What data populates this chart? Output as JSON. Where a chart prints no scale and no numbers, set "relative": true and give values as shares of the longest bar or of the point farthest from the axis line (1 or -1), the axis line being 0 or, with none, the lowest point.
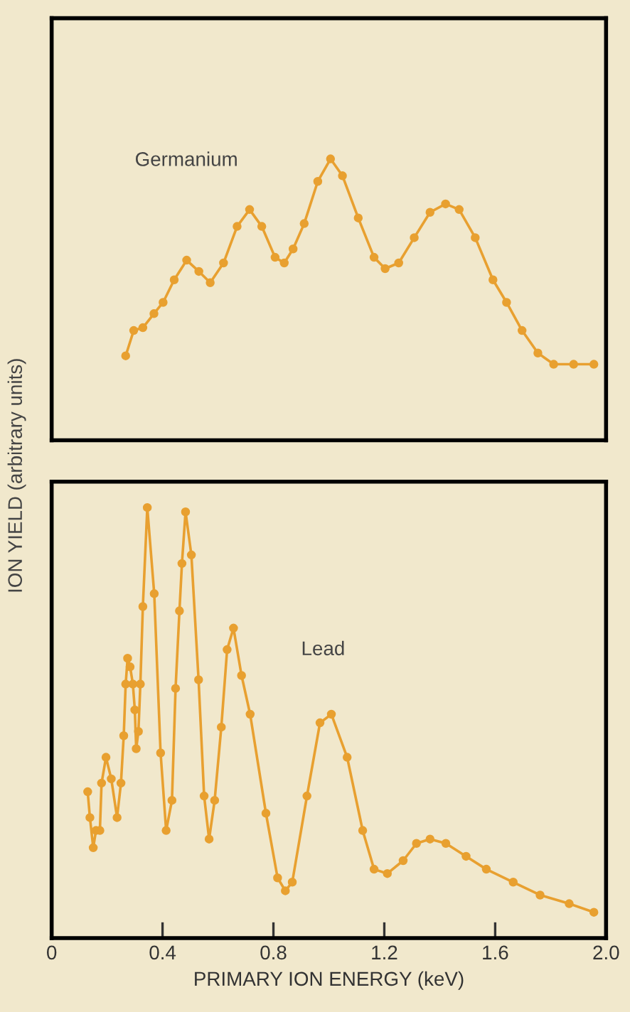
{
  "chart_data": [
    {
      "type": "line",
      "relative": true,
      "ylabel": "ION YIELD (arbitrary units)",
      "xlim": [
        0,
        2.0
      ],
      "tick_labels": false,
      "marker": "circle",
      "line_style": "solid",
      "series": [
        {
          "name": "Germanium",
          "color": "#e8a030",
          "x": [
            0.267,
            0.296,
            0.329,
            0.369,
            0.402,
            0.442,
            0.487,
            0.531,
            0.572,
            0.62,
            0.669,
            0.714,
            0.758,
            0.806,
            0.839,
            0.871,
            0.911,
            0.96,
            1.006,
            1.049,
            1.106,
            1.163,
            1.203,
            1.252,
            1.308,
            1.365,
            1.421,
            1.47,
            1.528,
            1.592,
            1.641,
            1.697,
            1.754,
            1.811,
            1.883,
            1.956
          ],
          "values": [
            0.3,
            0.39,
            0.4,
            0.45,
            0.49,
            0.57,
            0.64,
            0.6,
            0.56,
            0.63,
            0.76,
            0.82,
            0.76,
            0.65,
            0.63,
            0.68,
            0.77,
            0.92,
            1.0,
            0.94,
            0.79,
            0.65,
            0.61,
            0.63,
            0.72,
            0.81,
            0.84,
            0.82,
            0.72,
            0.57,
            0.49,
            0.39,
            0.31,
            0.27,
            0.27,
            0.27
          ]
        }
      ]
    },
    {
      "type": "line",
      "relative": true,
      "xlabel": "PRIMARY ION ENERGY (keV)",
      "xlim": [
        0,
        2.0
      ],
      "xticks": [
        0,
        0.4,
        0.8,
        1.2,
        1.6,
        {
          "value": 2.0,
          "label": "2.0"
        }
      ],
      "tick_labels": "x",
      "marker": "circle",
      "line_style": "solid",
      "series": [
        {
          "name": "Lead",
          "color": "#e8a030",
          "x": [
            0.13,
            0.138,
            0.15,
            0.16,
            0.174,
            0.18,
            0.196,
            0.215,
            0.236,
            0.25,
            0.26,
            0.267,
            0.274,
            0.283,
            0.293,
            0.3,
            0.305,
            0.313,
            0.32,
            0.329,
            0.345,
            0.37,
            0.393,
            0.413,
            0.434,
            0.447,
            0.461,
            0.47,
            0.483,
            0.504,
            0.53,
            0.55,
            0.568,
            0.588,
            0.612,
            0.633,
            0.656,
            0.685,
            0.716,
            0.773,
            0.815,
            0.843,
            0.868,
            0.921,
            0.968,
            1.009,
            1.066,
            1.122,
            1.163,
            1.211,
            1.268,
            1.316,
            1.365,
            1.422,
            1.495,
            1.568,
            1.665,
            1.762,
            1.867,
            1.956
          ],
          "values": [
            0.34,
            0.28,
            0.21,
            0.25,
            0.25,
            0.36,
            0.42,
            0.37,
            0.28,
            0.36,
            0.47,
            0.59,
            0.65,
            0.63,
            0.59,
            0.53,
            0.44,
            0.48,
            0.59,
            0.77,
            1.0,
            0.8,
            0.43,
            0.25,
            0.32,
            0.58,
            0.76,
            0.87,
            0.99,
            0.89,
            0.6,
            0.33,
            0.23,
            0.32,
            0.49,
            0.67,
            0.72,
            0.61,
            0.52,
            0.29,
            0.14,
            0.11,
            0.13,
            0.33,
            0.5,
            0.52,
            0.42,
            0.25,
            0.16,
            0.15,
            0.18,
            0.22,
            0.23,
            0.22,
            0.19,
            0.16,
            0.13,
            0.1,
            0.08,
            0.06
          ]
        }
      ]
    }
  ]
}
